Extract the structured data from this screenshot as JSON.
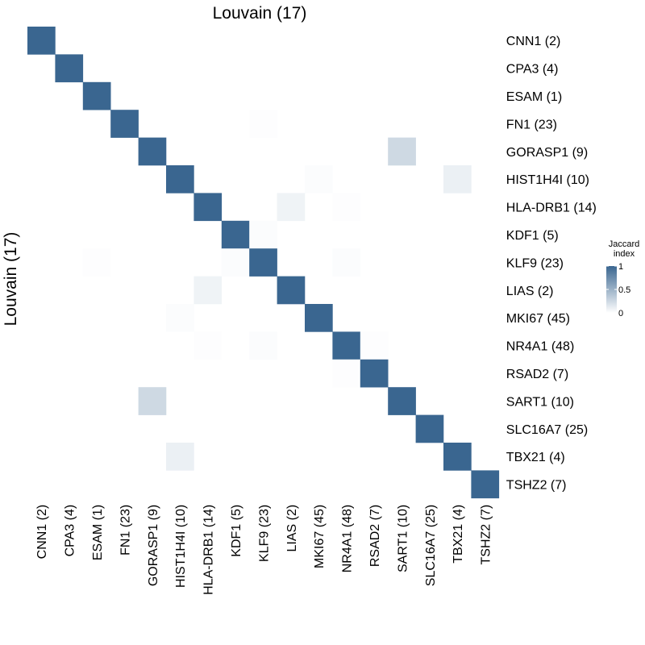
{
  "chart_data": {
    "type": "heatmap",
    "title": "Louvain (17)",
    "xlabel": "",
    "ylabel": "Louvain (17)",
    "categories": [
      "CNN1 (2)",
      "CPA3 (4)",
      "ESAM (1)",
      "FN1 (23)",
      "GORASP1 (9)",
      "HIST1H4I (10)",
      "HLA-DRB1 (14)",
      "KDF1 (5)",
      "KLF9 (23)",
      "LIAS (2)",
      "MKI67 (45)",
      "NR4A1 (48)",
      "RSAD2 (7)",
      "SART1 (10)",
      "SLC16A7 (25)",
      "TBX21 (4)",
      "TSHZ2 (7)"
    ],
    "matrix": [
      [
        1,
        0,
        0,
        0,
        0,
        0,
        0,
        0,
        0,
        0,
        0,
        0,
        0,
        0,
        0,
        0,
        0
      ],
      [
        0,
        1,
        0,
        0,
        0,
        0,
        0,
        0,
        0,
        0,
        0,
        0,
        0,
        0,
        0,
        0,
        0
      ],
      [
        0,
        0,
        1,
        0,
        0,
        0,
        0,
        0,
        0,
        0,
        0,
        0,
        0,
        0,
        0,
        0,
        0
      ],
      [
        0,
        0,
        0,
        1,
        0,
        0,
        0,
        0,
        0.01,
        0,
        0,
        0,
        0,
        0,
        0,
        0,
        0
      ],
      [
        0,
        0,
        0,
        0,
        1,
        0,
        0,
        0,
        0,
        0,
        0,
        0,
        0,
        0.25,
        0,
        0,
        0
      ],
      [
        0,
        0,
        0,
        0,
        0,
        1,
        0,
        0,
        0,
        0,
        0.02,
        0,
        0,
        0,
        0,
        0.1,
        0
      ],
      [
        0,
        0,
        0,
        0,
        0,
        0,
        1,
        0,
        0,
        0.08,
        0,
        0.01,
        0,
        0,
        0,
        0,
        0
      ],
      [
        0,
        0,
        0,
        0,
        0,
        0,
        0,
        1,
        0.02,
        0,
        0,
        0,
        0,
        0,
        0,
        0,
        0
      ],
      [
        0,
        0,
        0.01,
        0,
        0,
        0,
        0,
        0.02,
        1,
        0,
        0,
        0.02,
        0,
        0,
        0,
        0,
        0
      ],
      [
        0,
        0,
        0,
        0,
        0,
        0,
        0.08,
        0,
        0,
        1,
        0,
        0,
        0,
        0,
        0,
        0,
        0
      ],
      [
        0,
        0,
        0,
        0,
        0,
        0.02,
        0,
        0,
        0,
        0,
        1,
        0,
        0,
        0,
        0,
        0,
        0
      ],
      [
        0,
        0,
        0,
        0,
        0,
        0,
        0.01,
        0,
        0.02,
        0,
        0,
        1,
        0.01,
        0,
        0,
        0,
        0
      ],
      [
        0,
        0,
        0,
        0,
        0,
        0,
        0,
        0,
        0,
        0,
        0,
        0.01,
        1,
        0,
        0,
        0,
        0
      ],
      [
        0,
        0,
        0,
        0,
        0.25,
        0,
        0,
        0,
        0,
        0,
        0,
        0,
        0,
        1,
        0,
        0,
        0
      ],
      [
        0,
        0,
        0,
        0,
        0,
        0,
        0,
        0,
        0,
        0,
        0,
        0,
        0,
        0,
        1,
        0,
        0
      ],
      [
        0,
        0,
        0,
        0,
        0,
        0.1,
        0,
        0,
        0,
        0,
        0,
        0,
        0,
        0,
        0,
        1,
        0
      ],
      [
        0,
        0,
        0,
        0,
        0,
        0,
        0,
        0,
        0,
        0,
        0,
        0,
        0,
        0,
        0,
        0,
        1
      ]
    ],
    "value_range": [
      0,
      1
    ],
    "colors": {
      "low": "#ffffff",
      "high": "#3a6690"
    },
    "legend": {
      "title": "Jaccard\nindex",
      "ticks": [
        "1",
        "0.5",
        "0"
      ],
      "placement": "right"
    }
  }
}
